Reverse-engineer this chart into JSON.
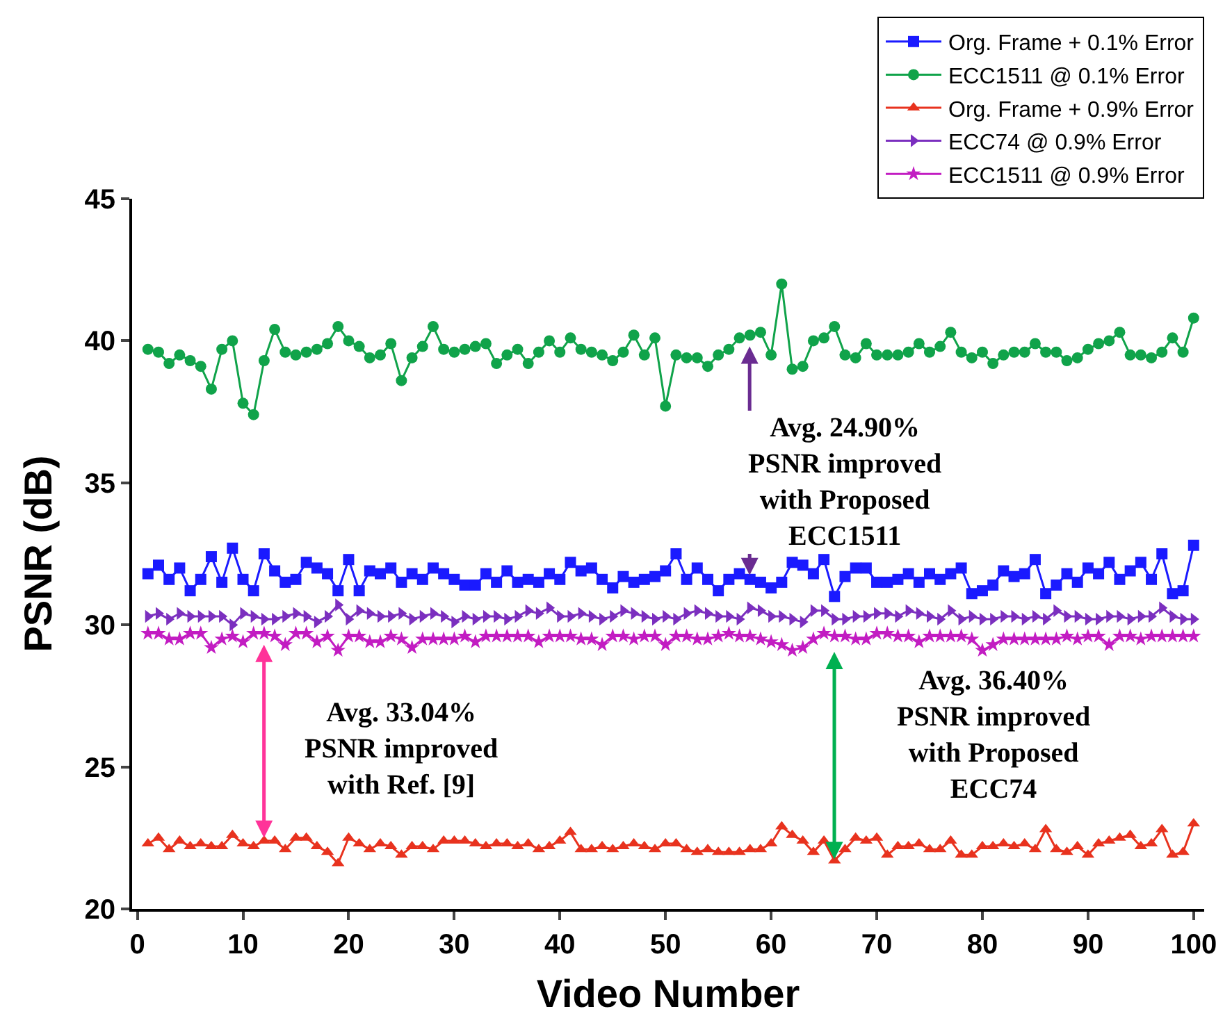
{
  "chart_data": {
    "type": "line",
    "xlabel": "Video Number",
    "ylabel": "PSNR (dB)",
    "x": [
      1,
      2,
      3,
      4,
      5,
      6,
      7,
      8,
      9,
      10,
      11,
      12,
      13,
      14,
      15,
      16,
      17,
      18,
      19,
      20,
      21,
      22,
      23,
      24,
      25,
      26,
      27,
      28,
      29,
      30,
      31,
      32,
      33,
      34,
      35,
      36,
      37,
      38,
      39,
      40,
      41,
      42,
      43,
      44,
      45,
      46,
      47,
      48,
      49,
      50,
      51,
      52,
      53,
      54,
      55,
      56,
      57,
      58,
      59,
      60,
      61,
      62,
      63,
      64,
      65,
      66,
      67,
      68,
      69,
      70,
      71,
      72,
      73,
      74,
      75,
      76,
      77,
      78,
      79,
      80,
      81,
      82,
      83,
      84,
      85,
      86,
      87,
      88,
      89,
      90,
      91,
      92,
      93,
      94,
      95,
      96,
      97,
      98,
      99,
      100
    ],
    "xlim": [
      -0.5,
      101
    ],
    "xticks": [
      0,
      10,
      20,
      30,
      40,
      50,
      60,
      70,
      80,
      90,
      100
    ],
    "ylim": [
      20,
      45
    ],
    "yticks": [
      20,
      25,
      30,
      35,
      40,
      45
    ],
    "legend": "top right",
    "series": [
      {
        "name": "Org. Frame + 0.1% Error",
        "color": "#1a1aff",
        "marker": "square",
        "values": [
          31.8,
          32.1,
          31.6,
          32.0,
          31.2,
          31.6,
          32.4,
          31.5,
          32.7,
          31.6,
          31.2,
          32.5,
          31.9,
          31.5,
          31.6,
          32.2,
          32.0,
          31.8,
          31.2,
          32.3,
          31.2,
          31.9,
          31.8,
          32.0,
          31.5,
          31.8,
          31.6,
          32.0,
          31.8,
          31.6,
          31.4,
          31.4,
          31.8,
          31.5,
          31.9,
          31.5,
          31.6,
          31.5,
          31.8,
          31.6,
          32.2,
          31.9,
          32.0,
          31.6,
          31.3,
          31.7,
          31.5,
          31.6,
          31.7,
          31.9,
          32.5,
          31.6,
          32.0,
          31.6,
          31.2,
          31.6,
          31.8,
          31.6,
          31.5,
          31.3,
          31.5,
          32.2,
          32.1,
          31.8,
          32.3,
          31.0,
          31.7,
          32.0,
          32.0,
          31.5,
          31.5,
          31.6,
          31.8,
          31.5,
          31.8,
          31.6,
          31.8,
          32.0,
          31.1,
          31.2,
          31.4,
          31.9,
          31.7,
          31.8,
          32.3,
          31.1,
          31.4,
          31.8,
          31.5,
          32.0,
          31.8,
          32.2,
          31.6,
          31.9,
          32.2,
          31.6,
          32.5,
          31.1,
          31.2,
          32.8
        ]
      },
      {
        "name": "ECC1511 @ 0.1% Error",
        "color": "#10a34a",
        "marker": "circle",
        "values": [
          39.7,
          39.6,
          39.2,
          39.5,
          39.3,
          39.1,
          38.3,
          39.7,
          40.0,
          37.8,
          37.4,
          39.3,
          40.4,
          39.6,
          39.5,
          39.6,
          39.7,
          39.9,
          40.5,
          40.0,
          39.8,
          39.4,
          39.5,
          39.9,
          38.6,
          39.4,
          39.8,
          40.5,
          39.7,
          39.6,
          39.7,
          39.8,
          39.9,
          39.2,
          39.5,
          39.7,
          39.2,
          39.6,
          40.0,
          39.6,
          40.1,
          39.7,
          39.6,
          39.5,
          39.3,
          39.6,
          40.2,
          39.5,
          40.1,
          37.7,
          39.5,
          39.4,
          39.4,
          39.1,
          39.5,
          39.7,
          40.1,
          40.2,
          40.3,
          39.5,
          42.0,
          39.0,
          39.1,
          40.0,
          40.1,
          40.5,
          39.5,
          39.4,
          39.9,
          39.5,
          39.5,
          39.5,
          39.6,
          39.9,
          39.6,
          39.8,
          40.3,
          39.6,
          39.4,
          39.6,
          39.2,
          39.5,
          39.6,
          39.6,
          39.9,
          39.6,
          39.6,
          39.3,
          39.4,
          39.7,
          39.9,
          40.0,
          40.3,
          39.5,
          39.5,
          39.4,
          39.6,
          40.1,
          39.6,
          40.8
        ]
      },
      {
        "name": "Org. Frame + 0.9% Error",
        "color": "#e8321e",
        "marker": "triangle",
        "values": [
          22.3,
          22.5,
          22.1,
          22.4,
          22.2,
          22.3,
          22.2,
          22.2,
          22.6,
          22.3,
          22.2,
          22.4,
          22.4,
          22.1,
          22.5,
          22.5,
          22.2,
          22.0,
          21.6,
          22.5,
          22.3,
          22.1,
          22.3,
          22.2,
          21.9,
          22.2,
          22.2,
          22.1,
          22.4,
          22.4,
          22.4,
          22.3,
          22.2,
          22.3,
          22.3,
          22.2,
          22.3,
          22.1,
          22.2,
          22.4,
          22.7,
          22.1,
          22.1,
          22.2,
          22.1,
          22.2,
          22.3,
          22.2,
          22.1,
          22.3,
          22.3,
          22.1,
          22.0,
          22.1,
          22.0,
          22.0,
          22.0,
          22.1,
          22.1,
          22.3,
          22.9,
          22.6,
          22.4,
          22.0,
          22.4,
          21.7,
          22.1,
          22.5,
          22.4,
          22.5,
          21.9,
          22.2,
          22.2,
          22.3,
          22.1,
          22.1,
          22.4,
          21.9,
          21.9,
          22.2,
          22.2,
          22.3,
          22.2,
          22.3,
          22.1,
          22.8,
          22.1,
          22.0,
          22.2,
          21.9,
          22.3,
          22.4,
          22.5,
          22.6,
          22.2,
          22.3,
          22.8,
          21.9,
          22.0,
          23.0
        ]
      },
      {
        "name": "ECC74 @ 0.9% Error",
        "color": "#7b2fbf",
        "marker": "triangle-right",
        "values": [
          30.3,
          30.4,
          30.2,
          30.4,
          30.3,
          30.3,
          30.3,
          30.3,
          30.0,
          30.4,
          30.3,
          30.2,
          30.2,
          30.3,
          30.4,
          30.3,
          30.1,
          30.3,
          30.7,
          30.2,
          30.5,
          30.4,
          30.3,
          30.3,
          30.4,
          30.2,
          30.3,
          30.4,
          30.3,
          30.1,
          30.3,
          30.2,
          30.3,
          30.3,
          30.2,
          30.3,
          30.5,
          30.4,
          30.6,
          30.3,
          30.3,
          30.4,
          30.3,
          30.2,
          30.3,
          30.5,
          30.4,
          30.3,
          30.2,
          30.3,
          30.2,
          30.4,
          30.5,
          30.4,
          30.3,
          30.3,
          30.2,
          30.6,
          30.5,
          30.3,
          30.3,
          30.2,
          30.1,
          30.5,
          30.5,
          30.2,
          30.2,
          30.3,
          30.3,
          30.4,
          30.4,
          30.3,
          30.5,
          30.4,
          30.3,
          30.2,
          30.5,
          30.2,
          30.3,
          30.2,
          30.2,
          30.3,
          30.3,
          30.2,
          30.3,
          30.2,
          30.5,
          30.3,
          30.3,
          30.2,
          30.2,
          30.3,
          30.3,
          30.2,
          30.3,
          30.3,
          30.6,
          30.3,
          30.2,
          30.2
        ]
      },
      {
        "name": "ECC1511 @ 0.9% Error",
        "color": "#c21cc2",
        "marker": "star",
        "values": [
          29.7,
          29.7,
          29.5,
          29.5,
          29.7,
          29.7,
          29.2,
          29.5,
          29.6,
          29.4,
          29.7,
          29.7,
          29.6,
          29.3,
          29.7,
          29.7,
          29.4,
          29.6,
          29.1,
          29.6,
          29.6,
          29.4,
          29.4,
          29.6,
          29.5,
          29.2,
          29.5,
          29.5,
          29.5,
          29.5,
          29.6,
          29.4,
          29.6,
          29.6,
          29.6,
          29.6,
          29.6,
          29.4,
          29.6,
          29.6,
          29.6,
          29.5,
          29.5,
          29.3,
          29.6,
          29.6,
          29.5,
          29.6,
          29.6,
          29.3,
          29.6,
          29.6,
          29.5,
          29.5,
          29.6,
          29.7,
          29.6,
          29.6,
          29.5,
          29.4,
          29.3,
          29.1,
          29.2,
          29.5,
          29.7,
          29.6,
          29.6,
          29.5,
          29.5,
          29.7,
          29.7,
          29.6,
          29.6,
          29.4,
          29.6,
          29.6,
          29.6,
          29.6,
          29.5,
          29.1,
          29.3,
          29.5,
          29.5,
          29.5,
          29.5,
          29.5,
          29.5,
          29.6,
          29.5,
          29.6,
          29.6,
          29.3,
          29.6,
          29.6,
          29.5,
          29.6,
          29.6,
          29.6,
          29.6,
          29.6
        ]
      }
    ],
    "annotations": [
      "Avg. 24.90%\nPSNR improved\nwith Proposed\nECC1511",
      "Avg. 33.04%\nPSNR improved\nwith Ref. [9]",
      "Avg. 36.40%\nPSNR improved\nwith Proposed\nECC74"
    ]
  }
}
